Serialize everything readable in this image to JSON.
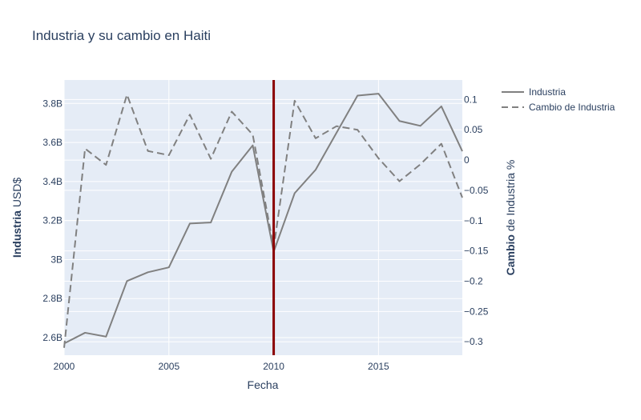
{
  "chart_data": {
    "type": "line",
    "title": "Industria y su cambio en Haiti",
    "xlabel": "Fecha",
    "ylabel_bold": "Industria",
    "ylabel_rest": " USD$",
    "y2label_bold": "Cambio",
    "y2label_rest": " de Industria %",
    "xlim": [
      2000,
      2019
    ],
    "ylim": [
      2.51,
      3.92
    ],
    "y2lim": [
      -0.3222,
      0.1322
    ],
    "x_ticks": [
      2000,
      2005,
      2010,
      2015
    ],
    "x_tick_labels": [
      "2000",
      "2005",
      "2010",
      "2015"
    ],
    "y_ticks": [
      2.6,
      2.8,
      3.0,
      3.2,
      3.4,
      3.6,
      3.8
    ],
    "y_tick_labels": [
      "2.6B",
      "2.8B",
      "3B",
      "3.2B",
      "3.4B",
      "3.6B",
      "3.8B"
    ],
    "y2_ticks": [
      0.1,
      0.05,
      0,
      -0.05,
      -0.1,
      -0.15,
      -0.2,
      -0.25,
      -0.3
    ],
    "y2_tick_labels": [
      "0.1",
      "0.05",
      "0",
      "−0.05",
      "−0.1",
      "−0.15",
      "−0.2",
      "−0.25",
      "−0.3"
    ],
    "x": [
      2000,
      2001,
      2002,
      2003,
      2004,
      2005,
      2006,
      2007,
      2008,
      2009,
      2010,
      2011,
      2012,
      2013,
      2014,
      2015,
      2016,
      2017,
      2018,
      2019
    ],
    "series": [
      {
        "name": "Industria",
        "axis": "y",
        "dash": "solid",
        "values": [
          2.57,
          2.625,
          2.605,
          2.89,
          2.935,
          2.96,
          3.185,
          3.19,
          3.45,
          3.585,
          3.04,
          3.34,
          3.46,
          3.65,
          3.84,
          3.85,
          3.71,
          3.685,
          3.785,
          3.555
        ]
      },
      {
        "name": "Cambio de Industria",
        "axis": "y2",
        "dash": "dash",
        "values": [
          -0.31,
          0.019,
          -0.008,
          0.108,
          0.015,
          0.008,
          0.075,
          0.002,
          0.08,
          0.042,
          -0.145,
          0.098,
          0.036,
          0.056,
          0.05,
          0.003,
          -0.035,
          -0.007,
          0.027,
          -0.062
        ]
      }
    ],
    "vline": {
      "x": 2010,
      "color": "#8b0000"
    },
    "grid": true,
    "legend_position": "top-right",
    "colors": {
      "line": "#808080",
      "plot_bg": "#e5ecf6",
      "grid": "#ffffff",
      "text": "#2a3f5f"
    }
  }
}
